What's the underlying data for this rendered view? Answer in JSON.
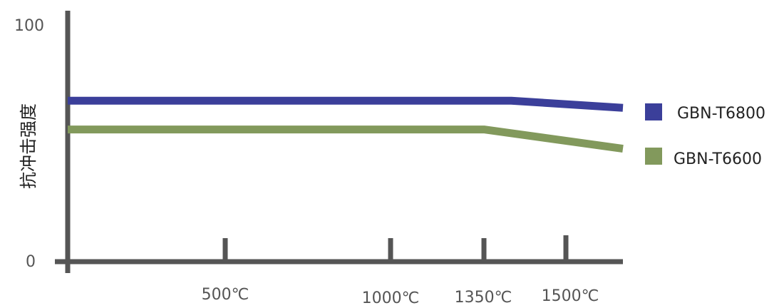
{
  "chart_data": {
    "type": "line",
    "title": "",
    "xlabel": "",
    "ylabel": "抗冲击强度",
    "categories": [
      "",
      "500℃",
      "1000℃",
      "1350℃",
      "",
      "1500℃",
      ""
    ],
    "x_positions": [
      0,
      500,
      1000,
      1350,
      1410,
      1500,
      1550
    ],
    "ylim": [
      0,
      100
    ],
    "yticks": [
      "0",
      "100"
    ],
    "grid": false,
    "legend_position": "right",
    "series": [
      {
        "name": "GBN-T6800",
        "color": "#3B3F9A",
        "points": [
          {
            "x": 0,
            "y": 67
          },
          {
            "x": 1400,
            "y": 67
          },
          {
            "x": 1550,
            "y": 64
          }
        ]
      },
      {
        "name": "GBN-T6600",
        "color": "#82995C",
        "points": [
          {
            "x": 0,
            "y": 55
          },
          {
            "x": 1350,
            "y": 55
          },
          {
            "x": 1550,
            "y": 47
          }
        ]
      }
    ]
  }
}
